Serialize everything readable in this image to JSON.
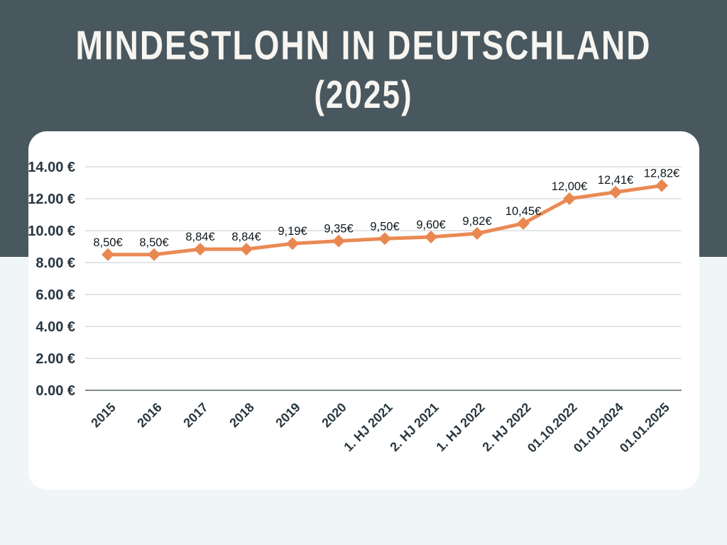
{
  "header": {
    "title_line1": "MINDESTLOHN IN DEUTSCHLAND",
    "title_line2": "(2025)"
  },
  "colors": {
    "header_bg": "#49575f",
    "page_bg": "#f0f5f8",
    "card_bg": "#ffffff",
    "title_text": "#f7f5f0",
    "line": "#ea8a55",
    "marker": "#e98750",
    "grid": "#d9dde1",
    "axis_line": "#5a646b",
    "data_label_text": "#10181d",
    "tick_text": "#27363f"
  },
  "chart_data": {
    "type": "line",
    "title": "Mindestlohn in Deutschland (2025)",
    "categories": [
      "2015",
      "2016",
      "2017",
      "2018",
      "2019",
      "2020",
      "1. HJ 2021",
      "2. HJ 2021",
      "1. HJ 2022",
      "2. HJ 2022",
      "01.10.2022",
      "01.01.2024",
      "01.01.2025"
    ],
    "values": [
      8.5,
      8.5,
      8.84,
      8.84,
      9.19,
      9.35,
      9.5,
      9.6,
      9.82,
      10.45,
      12.0,
      12.41,
      12.82
    ],
    "data_labels": [
      "8,50€",
      "8,50€",
      "8,84€",
      "8,84€",
      "9,19€",
      "9,35€",
      "9,50€",
      "9,60€",
      "9,82€",
      "10,45€",
      "12,00€",
      "12,41€",
      "12,82€"
    ],
    "y_tick_labels": [
      "0.00 €",
      "2.00 €",
      "4.00 €",
      "6.00 €",
      "8.00 €",
      "10.00 €",
      "12.00 €",
      "14.00 €"
    ],
    "y_tick_values": [
      0,
      2,
      4,
      6,
      8,
      10,
      12,
      14
    ],
    "xlabel": "",
    "ylabel": "",
    "ylim": [
      0,
      14
    ],
    "grid": true,
    "legend_position": "none",
    "marker_shape": "diamond"
  }
}
